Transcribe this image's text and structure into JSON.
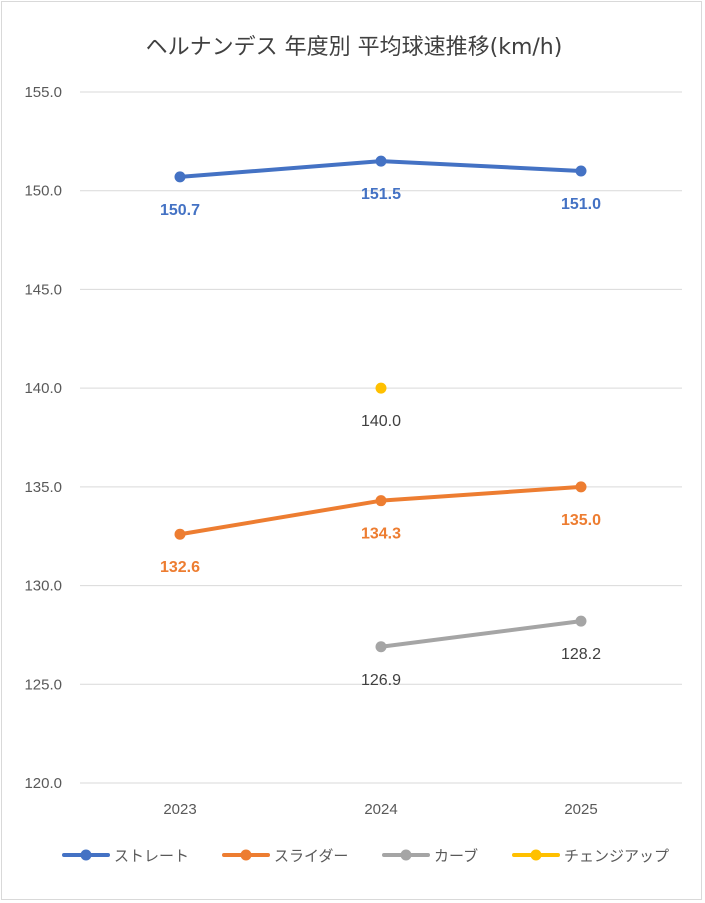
{
  "chart_data": {
    "type": "line",
    "title": "ヘルナンデス 年度別 平均球速推移(km/h)",
    "categories": [
      "2023",
      "2024",
      "2025"
    ],
    "ylim": [
      120,
      155
    ],
    "yticks": [
      "155.0",
      "150.0",
      "145.0",
      "140.0",
      "135.0",
      "130.0",
      "125.0",
      "120.0"
    ],
    "grid": true,
    "legend_position": "bottom",
    "series": [
      {
        "name": "ストレート",
        "color": "#4472C4",
        "values": [
          150.7,
          151.5,
          151.0
        ],
        "labels": [
          "150.7",
          "151.5",
          "151.0"
        ],
        "label_color": "#4472C4",
        "bold": true
      },
      {
        "name": "スライダー",
        "color": "#ED7D31",
        "values": [
          132.6,
          134.3,
          135.0
        ],
        "labels": [
          "132.6",
          "134.3",
          "135.0"
        ],
        "label_color": "#ED7D31",
        "bold": true
      },
      {
        "name": "カーブ",
        "color": "#A5A5A5",
        "values": [
          null,
          126.9,
          128.2
        ],
        "labels": [
          "",
          "126.9",
          "128.2"
        ],
        "label_color": "#404040",
        "bold": false
      },
      {
        "name": "チェンジアップ",
        "color": "#FFC000",
        "values": [
          null,
          140.0,
          null
        ],
        "labels": [
          "",
          "140.0",
          ""
        ],
        "label_color": "#404040",
        "bold": false
      }
    ]
  }
}
